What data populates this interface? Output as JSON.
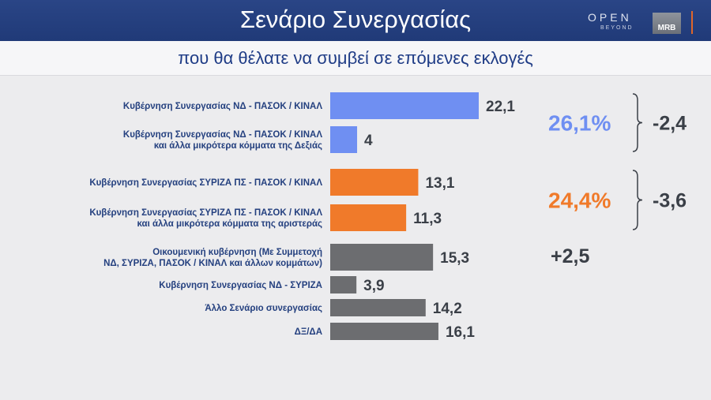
{
  "header": {
    "title": "Σενάριο Συνεργασίας",
    "logo_open": "OPEN",
    "logo_beyond": "BEYOND",
    "logo_mrb": "MRB"
  },
  "subtitle": "που θα θέλατε να συμβεί σε επόμενες εκλογές",
  "colors": {
    "blue": "#6f8ff2",
    "orange": "#f07a2a",
    "gray": "#6c6d70",
    "label": "#24407f",
    "header": "#203a78"
  },
  "chart_data": {
    "type": "bar",
    "orientation": "horizontal",
    "categories": [
      [
        "Κυβέρνηση Συνεργασίας ΝΔ - ΠΑΣΟΚ / ΚΙΝΑΛ"
      ],
      [
        "Κυβέρνηση Συνεργασίας ΝΔ - ΠΑΣΟΚ / ΚΙΝΑΛ",
        "και άλλα μικρότερα κόμματα της Δεξιάς"
      ],
      [
        "Κυβέρνηση Συνεργασίας ΣΥΡΙΖΑ ΠΣ - ΠΑΣΟΚ / ΚΙΝΑΛ"
      ],
      [
        "Κυβέρνηση Συνεργασίας ΣΥΡΙΖΑ ΠΣ - ΠΑΣΟΚ / ΚΙΝΑΛ",
        "και άλλα μικρότερα κόμματα της αριστεράς"
      ],
      [
        "Οικουμενική κυβέρνηση (Με Συμμετοχή",
        "ΝΔ, ΣΥΡΙΖΑ, ΠΑΣΟΚ / ΚΙΝΑΛ και άλλων κομμάτων)"
      ],
      [
        "Κυβέρνηση Συνεργασίας ΝΔ - ΣΥΡΙΖΑ"
      ],
      [
        "Άλλο Σενάριο συνεργασίας"
      ],
      [
        "ΔΞ/ΔΑ"
      ]
    ],
    "values": [
      22.1,
      4,
      13.1,
      11.3,
      15.3,
      3.9,
      14.2,
      16.1
    ],
    "value_labels": [
      "22,1",
      "4",
      "13,1",
      "11,3",
      "15,3",
      "3,9",
      "14,2",
      "16,1"
    ],
    "bar_colors": [
      "blue",
      "blue",
      "orange",
      "orange",
      "gray",
      "gray",
      "gray",
      "gray"
    ],
    "value_axis_max": 22.1,
    "groups": [
      {
        "rows": [
          0,
          1
        ],
        "total": "26,1%",
        "change": "-2,4",
        "color": "blue"
      },
      {
        "rows": [
          2,
          3
        ],
        "total": "24,4%",
        "change": "-3,6",
        "color": "orange"
      }
    ],
    "row_changes": [
      {
        "row": 4,
        "change": "+2,5"
      }
    ]
  }
}
